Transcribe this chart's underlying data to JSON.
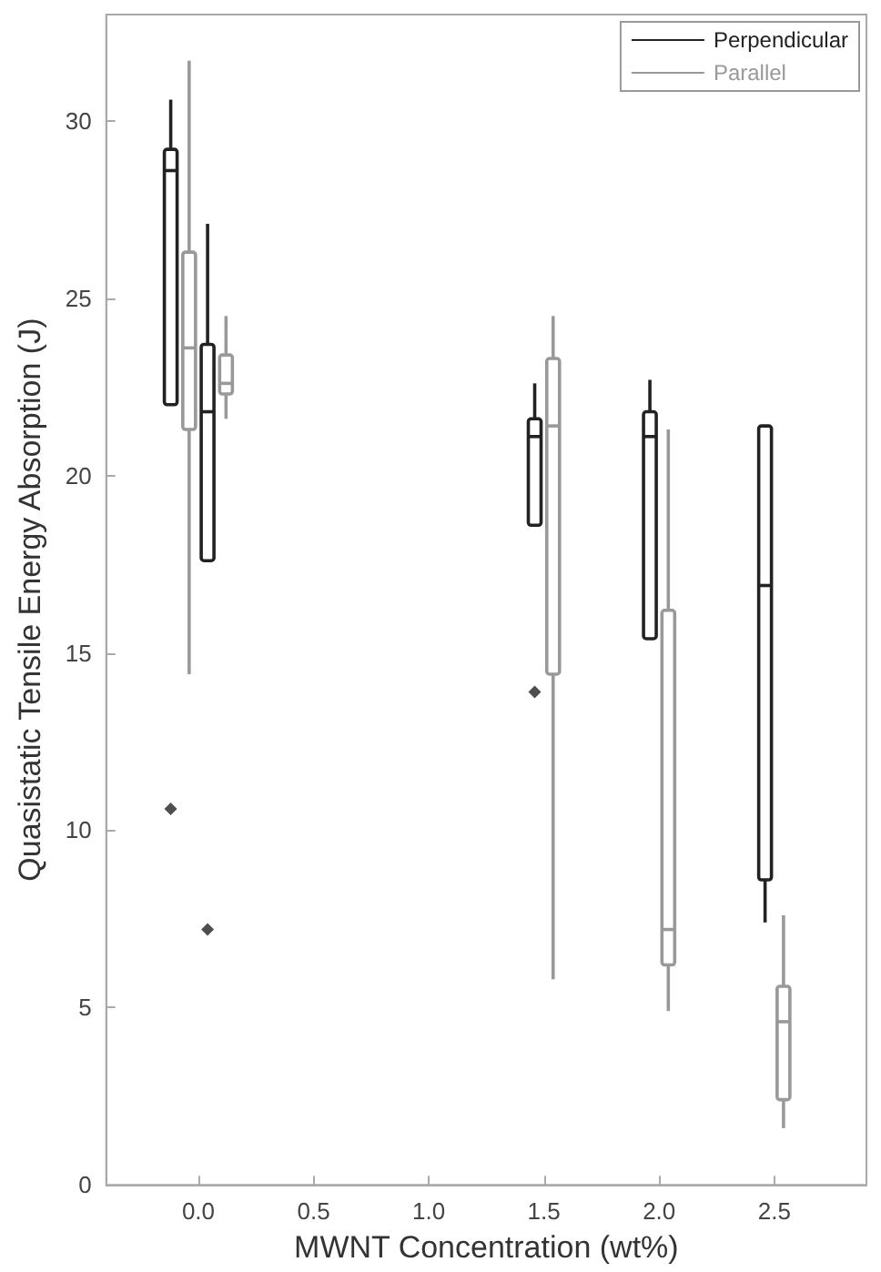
{
  "chart_data": {
    "type": "box",
    "xlabel": "MWNT Concentration (wt%)",
    "ylabel": "Quasistatic Tensile Energy Absorption (J)",
    "xlim": [
      -0.4,
      2.9
    ],
    "xticks": [
      {
        "value": 0,
        "label": "0.0"
      },
      {
        "value": 0.5,
        "label": "0.5"
      },
      {
        "value": 1,
        "label": "1.0"
      },
      {
        "value": 1.5,
        "label": "1.5"
      },
      {
        "value": 2,
        "label": "2.0"
      },
      {
        "value": 2.5,
        "label": "2.5"
      }
    ],
    "ylim": [
      0,
      33
    ],
    "yticks": [
      0,
      5,
      10,
      15,
      20,
      25,
      30
    ],
    "legend": "top right",
    "marker": "diamond",
    "series": [
      {
        "name": "Perpendicular",
        "color": "#222222",
        "x": [
          -0.12,
          0.04,
          1.46,
          1.96,
          2.46
        ],
        "boxes": [
          {
            "low": 22.0,
            "q1": 22.0,
            "median": 28.6,
            "q3": 29.2,
            "high": 30.6,
            "outliers": [
              10.6
            ]
          },
          {
            "low": 17.6,
            "q1": 17.6,
            "median": 21.8,
            "q3": 23.7,
            "high": 27.1,
            "outliers": [
              7.2
            ]
          },
          {
            "low": 18.6,
            "q1": 18.6,
            "median": 21.1,
            "q3": 21.6,
            "high": 22.6,
            "outliers": [
              13.9
            ]
          },
          {
            "low": 15.4,
            "q1": 15.4,
            "median": 21.1,
            "q3": 21.8,
            "high": 22.7
          },
          {
            "low": 7.4,
            "q1": 8.6,
            "median": 16.9,
            "q3": 21.4,
            "high": 21.4
          }
        ]
      },
      {
        "name": "Parallel",
        "color": "#999999",
        "x": [
          -0.04,
          0.12,
          1.54,
          2.04,
          2.54
        ],
        "boxes": [
          {
            "low": 14.4,
            "q1": 21.3,
            "median": 23.6,
            "q3": 26.3,
            "high": 31.7
          },
          {
            "low": 21.6,
            "q1": 22.3,
            "median": 22.6,
            "q3": 23.4,
            "high": 24.5
          },
          {
            "low": 5.8,
            "q1": 14.4,
            "median": 21.4,
            "q3": 23.3,
            "high": 24.5
          },
          {
            "low": 4.9,
            "q1": 6.2,
            "median": 7.2,
            "q3": 16.2,
            "high": 21.3
          },
          {
            "low": 1.6,
            "q1": 2.4,
            "median": 4.6,
            "q3": 5.6,
            "high": 7.6
          }
        ]
      }
    ]
  }
}
